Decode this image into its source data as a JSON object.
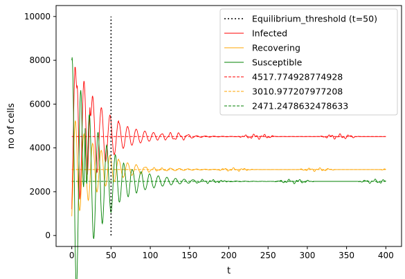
{
  "chart_data": {
    "type": "line",
    "title": "",
    "xlabel": "t",
    "ylabel": "no of cells",
    "xlim": [
      -20,
      420
    ],
    "ylim": [
      -500,
      10500
    ],
    "x_ticks": [
      0,
      50,
      100,
      150,
      200,
      250,
      300,
      350,
      400
    ],
    "y_ticks": [
      0,
      2000,
      4000,
      6000,
      8000,
      10000
    ],
    "grid": false,
    "legend_position": "top-right",
    "vline": {
      "name": "Equilibrium_threshold (t=50)",
      "x": 50,
      "y_from": 0,
      "y_to": 10000,
      "color": "#000000",
      "style": "dotted"
    },
    "series": [
      {
        "name": "Infected",
        "color": "#ff0000",
        "start": 1200,
        "equilibrium": 4517.774928774928,
        "initial_amplitude": 3000,
        "period": 11,
        "decay": 0.028,
        "noise_amplitude": 130,
        "peaks": [
          [
            7,
            6850
          ],
          [
            23,
            5850
          ]
        ]
      },
      {
        "name": "Recovering",
        "color": "#ffa500",
        "start": 800,
        "equilibrium": 3010.977207977208,
        "initial_amplitude": 2000,
        "period": 11,
        "decay": 0.028,
        "noise_amplitude": 90,
        "peaks": []
      },
      {
        "name": "Susceptible",
        "color": "#008000",
        "start": 8000,
        "equilibrium": 2471.2478632478633,
        "initial_amplitude": 2600,
        "period": 11,
        "decay": 0.028,
        "noise_amplitude": 110,
        "peaks": [
          [
            17,
            4900
          ]
        ]
      }
    ],
    "hlines": [
      {
        "name": "4517.774928774928",
        "y": 4517.774928774928,
        "color": "#ff0000",
        "style": "dashed"
      },
      {
        "name": "3010.977207977208",
        "y": 3010.977207977208,
        "color": "#ffa500",
        "style": "dashed"
      },
      {
        "name": "2471.2478632478633",
        "y": 2471.2478632478633,
        "color": "#008000",
        "style": "dashed"
      }
    ],
    "x_range": [
      0,
      400
    ]
  }
}
